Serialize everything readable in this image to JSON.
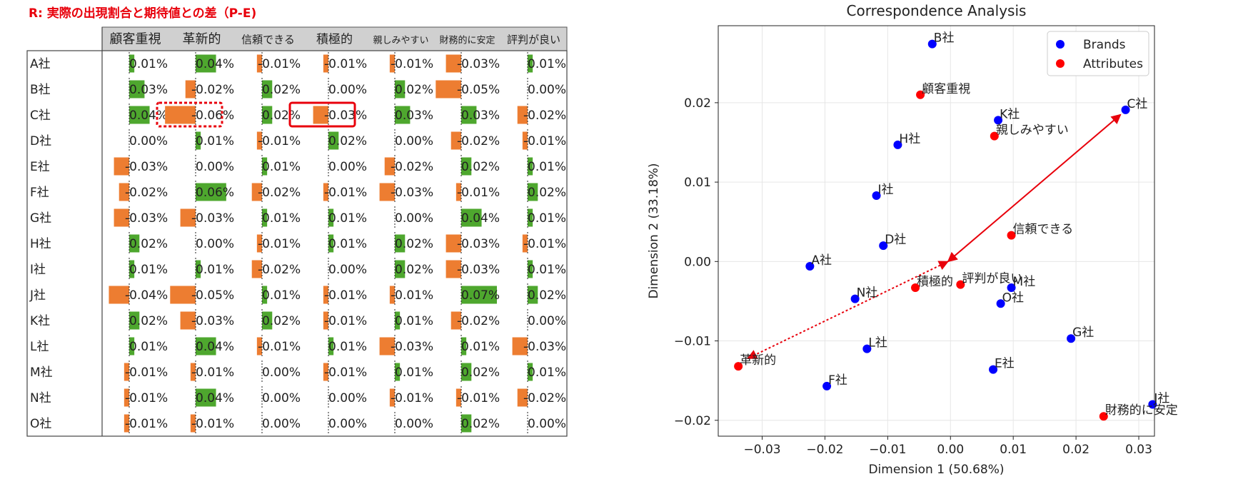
{
  "table_title": "R: 実際の出現割合と期待値との差（P-E)",
  "chart_data": [
    {
      "type": "table",
      "columns": [
        "顧客重視",
        "革新的",
        "信頼できる",
        "積極的",
        "親しみやすい",
        "財務的に安定",
        "評判が良い"
      ],
      "rows": [
        {
          "brand": "A社",
          "values": [
            0.01,
            0.04,
            -0.01,
            -0.01,
            -0.01,
            -0.03,
            0.01
          ],
          "labels": [
            "0.01%",
            "0.04%",
            "-0.01%",
            "-0.01%",
            "-0.01%",
            "-0.03%",
            "0.01%"
          ]
        },
        {
          "brand": "B社",
          "values": [
            0.03,
            -0.02,
            0.02,
            0.0,
            0.02,
            -0.05,
            0.0
          ],
          "labels": [
            "0.03%",
            "-0.02%",
            "0.02%",
            "0.00%",
            "0.02%",
            "-0.05%",
            "0.00%"
          ]
        },
        {
          "brand": "C社",
          "values": [
            0.04,
            -0.06,
            0.02,
            -0.03,
            0.03,
            0.03,
            -0.02
          ],
          "labels": [
            "0.04%",
            "-0.06%",
            "0.02%",
            "-0.03%",
            "0.03%",
            "0.03%",
            "-0.02%"
          ]
        },
        {
          "brand": "D社",
          "values": [
            0.0,
            0.01,
            -0.01,
            0.02,
            0.0,
            -0.02,
            -0.01
          ],
          "labels": [
            "0.00%",
            "0.01%",
            "-0.01%",
            "0.02%",
            "0.00%",
            "-0.02%",
            "-0.01%"
          ]
        },
        {
          "brand": "E社",
          "values": [
            -0.03,
            0.0,
            0.01,
            0.0,
            -0.02,
            0.02,
            0.01
          ],
          "labels": [
            "-0.03%",
            "0.00%",
            "0.01%",
            "0.00%",
            "-0.02%",
            "0.02%",
            "0.01%"
          ]
        },
        {
          "brand": "F社",
          "values": [
            -0.02,
            0.06,
            -0.02,
            -0.01,
            -0.03,
            -0.01,
            0.02
          ],
          "labels": [
            "-0.02%",
            "0.06%",
            "-0.02%",
            "-0.01%",
            "-0.03%",
            "-0.01%",
            "0.02%"
          ]
        },
        {
          "brand": "G社",
          "values": [
            -0.03,
            -0.03,
            0.01,
            0.01,
            0.0,
            0.04,
            0.01
          ],
          "labels": [
            "-0.03%",
            "-0.03%",
            "0.01%",
            "0.01%",
            "0.00%",
            "0.04%",
            "0.01%"
          ]
        },
        {
          "brand": "H社",
          "values": [
            0.02,
            0.0,
            -0.01,
            0.01,
            0.02,
            -0.03,
            -0.01
          ],
          "labels": [
            "0.02%",
            "0.00%",
            "-0.01%",
            "0.01%",
            "0.02%",
            "-0.03%",
            "-0.01%"
          ]
        },
        {
          "brand": "I社",
          "values": [
            0.01,
            0.01,
            -0.02,
            0.0,
            0.02,
            -0.03,
            0.01
          ],
          "labels": [
            "0.01%",
            "0.01%",
            "-0.02%",
            "0.00%",
            "0.02%",
            "-0.03%",
            "0.01%"
          ]
        },
        {
          "brand": "J社",
          "values": [
            -0.04,
            -0.05,
            0.01,
            -0.01,
            -0.01,
            0.07,
            0.02
          ],
          "labels": [
            "-0.04%",
            "-0.05%",
            "0.01%",
            "-0.01%",
            "-0.01%",
            "0.07%",
            "0.02%"
          ]
        },
        {
          "brand": "K社",
          "values": [
            0.02,
            -0.03,
            0.02,
            -0.01,
            0.01,
            -0.02,
            0.0
          ],
          "labels": [
            "0.02%",
            "-0.03%",
            "0.02%",
            "-0.01%",
            "0.01%",
            "-0.02%",
            "0.00%"
          ]
        },
        {
          "brand": "L社",
          "values": [
            0.01,
            0.04,
            -0.01,
            0.01,
            -0.03,
            0.01,
            -0.03
          ],
          "labels": [
            "0.01%",
            "0.04%",
            "-0.01%",
            "0.01%",
            "-0.03%",
            "0.01%",
            "-0.03%"
          ]
        },
        {
          "brand": "M社",
          "values": [
            -0.01,
            -0.01,
            0.0,
            -0.01,
            0.01,
            0.02,
            0.01
          ],
          "labels": [
            "-0.01%",
            "-0.01%",
            "0.00%",
            "-0.01%",
            "0.01%",
            "0.02%",
            "0.01%"
          ]
        },
        {
          "brand": "N社",
          "values": [
            -0.01,
            0.04,
            0.0,
            0.0,
            -0.01,
            -0.01,
            -0.02
          ],
          "labels": [
            "-0.01%",
            "0.04%",
            "0.00%",
            "0.00%",
            "-0.01%",
            "-0.01%",
            "-0.02%"
          ]
        },
        {
          "brand": "O社",
          "values": [
            -0.01,
            -0.01,
            0.0,
            0.0,
            0.0,
            0.02,
            0.0
          ],
          "labels": [
            "-0.01%",
            "-0.01%",
            "0.00%",
            "0.00%",
            "0.00%",
            "0.02%",
            "0.00%"
          ]
        }
      ],
      "highlights": [
        {
          "row": "C社",
          "column": "革新的",
          "style": "dotted"
        },
        {
          "row": "C社",
          "column": "積極的",
          "style": "solid"
        }
      ],
      "colors": {
        "positive": "#4ea72e",
        "negative": "#ed7d31",
        "highlight": "#e8000b"
      }
    },
    {
      "type": "scatter",
      "title": "Correspondence Analysis",
      "xlabel": "Dimension 1 (50.68%)",
      "ylabel": "Dimension 2 (33.18%)",
      "xlim": [
        -0.037,
        0.0325
      ],
      "ylim": [
        -0.022,
        0.0297
      ],
      "xticks": [
        -0.03,
        -0.02,
        -0.01,
        0.0,
        0.01,
        0.02,
        0.03
      ],
      "xtick_labels": [
        "−0.03",
        "−0.02",
        "−0.01",
        "0.00",
        "0.01",
        "0.02",
        "0.03"
      ],
      "yticks": [
        -0.02,
        -0.01,
        0.0,
        0.01,
        0.02
      ],
      "ytick_labels": [
        "−0.02",
        "−0.01",
        "0.00",
        "0.01",
        "0.02"
      ],
      "grid": true,
      "legend": "top-right",
      "series": [
        {
          "name": "Brands",
          "color": "#0000ff",
          "points": [
            {
              "label": "A社",
              "x": -0.0224,
              "y": -0.0006
            },
            {
              "label": "B社",
              "x": -0.0029,
              "y": 0.0274
            },
            {
              "label": "C社",
              "x": 0.0279,
              "y": 0.0191
            },
            {
              "label": "D社",
              "x": -0.0107,
              "y": 0.002
            },
            {
              "label": "E社",
              "x": 0.0068,
              "y": -0.0136
            },
            {
              "label": "F社",
              "x": -0.0197,
              "y": -0.0157
            },
            {
              "label": "G社",
              "x": 0.0192,
              "y": -0.0097
            },
            {
              "label": "H社",
              "x": -0.0084,
              "y": 0.0147
            },
            {
              "label": "I社",
              "x": -0.0118,
              "y": 0.0083
            },
            {
              "label": "J社",
              "x": 0.0322,
              "y": -0.018
            },
            {
              "label": "K社",
              "x": 0.0076,
              "y": 0.0178
            },
            {
              "label": "L社",
              "x": -0.0133,
              "y": -0.011
            },
            {
              "label": "M社",
              "x": 0.0097,
              "y": -0.0033
            },
            {
              "label": "N社",
              "x": -0.0152,
              "y": -0.0047
            },
            {
              "label": "O社",
              "x": 0.008,
              "y": -0.0053
            }
          ]
        },
        {
          "name": "Attributes",
          "color": "#ff0000",
          "points": [
            {
              "label": "顧客重視",
              "x": -0.0048,
              "y": 0.021
            },
            {
              "label": "親しみやすい",
              "x": 0.007,
              "y": 0.0158
            },
            {
              "label": "信頼できる",
              "x": 0.0097,
              "y": 0.0033
            },
            {
              "label": "積極的",
              "x": -0.0056,
              "y": -0.0033
            },
            {
              "label": "評判が良い",
              "x": 0.0016,
              "y": -0.0029
            },
            {
              "label": "革新的",
              "x": -0.0338,
              "y": -0.0132
            },
            {
              "label": "財務的に安定",
              "x": 0.0244,
              "y": -0.0195
            }
          ]
        }
      ],
      "arrows": [
        {
          "from": [
            -0.0004,
            0.0
          ],
          "to": [
            0.0271,
            0.0185
          ],
          "style": "solid",
          "heads": "both"
        },
        {
          "from": [
            -0.0004,
            0.0
          ],
          "to": [
            -0.0323,
            -0.0122
          ],
          "style": "dotted",
          "heads": "both"
        }
      ]
    }
  ]
}
